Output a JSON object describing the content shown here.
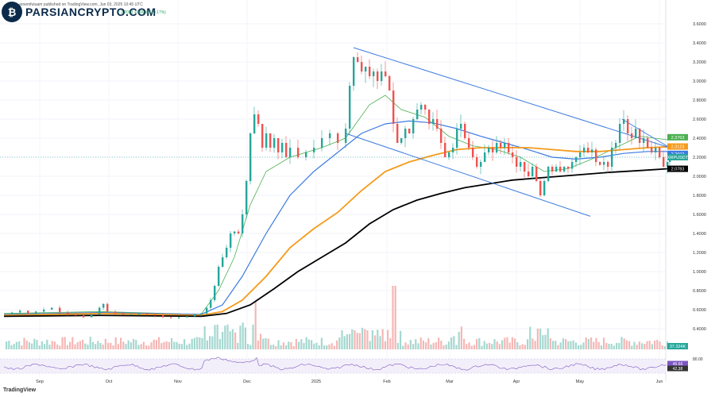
{
  "header": {
    "publisher": "arnemfutuam published on TradingView.com, Jun 03, 2025 10:45 UTC",
    "brand": "PARSIANCRYPTO.COM",
    "ohlc_text": "≈ 2.2003 +0.0038 (+0.17%)",
    "footer_logo": "TradingView"
  },
  "colors": {
    "up": "#26a69a",
    "down": "#ef5350",
    "ema_fast": "#4caf50",
    "ema_mid": "#3d7be0",
    "ema_slow": "#f59a1b",
    "ema_200": "#000000",
    "channel": "#3d7be0"
  },
  "chart_data": {
    "type": "line",
    "symbol_tag": "XRPUSDT",
    "y_ticks": [
      "3.6000",
      "3.4000",
      "3.2000",
      "3.0000",
      "2.8000",
      "2.6000",
      "2.4000",
      "2.2000",
      "2.0000",
      "1.8000",
      "1.6000",
      "1.4000",
      "1.2000",
      "1.0000",
      "0.8000",
      "0.6000",
      "0.4000"
    ],
    "x_ticks": [
      "Sep",
      "Oct",
      "Nov",
      "Dec",
      "2025",
      "Feb",
      "Mar",
      "Apr",
      "May",
      "Jun"
    ],
    "price_labels": [
      {
        "value": "2.3763",
        "color": "#4caf50",
        "price": 2.3763
      },
      {
        "value": "2.3123",
        "color": "#f59a1b",
        "price": 2.3123
      },
      {
        "value": "2.2602",
        "color": "#3d7be0",
        "price": 2.2602
      },
      {
        "value": "XRPUSDT",
        "color": "#26a69a",
        "price": 2.2003
      },
      {
        "value": "2.0783",
        "color": "#000000",
        "price": 2.0783
      }
    ],
    "volume_label": "37.324K",
    "rsi_ticks": [
      "80.00",
      "46.66",
      "42.38"
    ],
    "series": [
      {
        "name": "price",
        "values": [
          [
            0,
            0.55
          ],
          [
            10,
            0.57
          ],
          [
            20,
            0.59
          ],
          [
            30,
            0.56
          ],
          [
            40,
            0.58
          ],
          [
            50,
            0.6
          ],
          [
            60,
            0.62
          ],
          [
            70,
            0.57
          ],
          [
            80,
            0.55
          ],
          [
            90,
            0.54
          ],
          [
            100,
            0.52
          ],
          [
            110,
            0.55
          ],
          [
            120,
            0.62
          ],
          [
            125,
            0.66
          ],
          [
            130,
            0.58
          ],
          [
            140,
            0.56
          ],
          [
            150,
            0.55
          ],
          [
            160,
            0.55
          ],
          [
            170,
            0.56
          ],
          [
            180,
            0.55
          ],
          [
            190,
            0.54
          ],
          [
            200,
            0.52
          ],
          [
            210,
            0.51
          ],
          [
            220,
            0.52
          ],
          [
            230,
            0.53
          ],
          [
            240,
            0.55
          ],
          [
            248,
            0.56
          ],
          [
            255,
            0.62
          ],
          [
            260,
            0.7
          ],
          [
            265,
            0.85
          ],
          [
            270,
            1.05
          ],
          [
            275,
            1.15
          ],
          [
            280,
            1.25
          ],
          [
            285,
            1.4
          ],
          [
            290,
            1.42
          ],
          [
            295,
            1.4
          ],
          [
            300,
            1.6
          ],
          [
            305,
            1.95
          ],
          [
            310,
            2.45
          ],
          [
            315,
            2.65
          ],
          [
            320,
            2.55
          ],
          [
            325,
            2.3
          ],
          [
            330,
            2.45
          ],
          [
            335,
            2.3
          ],
          [
            340,
            2.4
          ],
          [
            345,
            2.25
          ],
          [
            350,
            2.35
          ],
          [
            355,
            2.2
          ],
          [
            360,
            2.3
          ],
          [
            370,
            2.2
          ],
          [
            380,
            2.25
          ],
          [
            390,
            2.3
          ],
          [
            400,
            2.4
          ],
          [
            410,
            2.45
          ],
          [
            420,
            2.35
          ],
          [
            430,
            2.5
          ],
          [
            435,
            2.95
          ],
          [
            440,
            3.25
          ],
          [
            445,
            3.2
          ],
          [
            450,
            3.1
          ],
          [
            455,
            3.15
          ],
          [
            460,
            3.05
          ],
          [
            465,
            3.1
          ],
          [
            470,
            3.0
          ],
          [
            475,
            3.1
          ],
          [
            480,
            3.05
          ],
          [
            485,
            2.9
          ],
          [
            490,
            2.55
          ],
          [
            495,
            2.35
          ],
          [
            500,
            2.4
          ],
          [
            505,
            2.5
          ],
          [
            510,
            2.45
          ],
          [
            515,
            2.6
          ],
          [
            520,
            2.7
          ],
          [
            525,
            2.75
          ],
          [
            530,
            2.7
          ],
          [
            535,
            2.55
          ],
          [
            540,
            2.6
          ],
          [
            545,
            2.5
          ],
          [
            550,
            2.35
          ],
          [
            555,
            2.2
          ],
          [
            560,
            2.25
          ],
          [
            565,
            2.3
          ],
          [
            570,
            2.5
          ],
          [
            575,
            2.55
          ],
          [
            580,
            2.4
          ],
          [
            585,
            2.3
          ],
          [
            590,
            2.2
          ],
          [
            595,
            2.1
          ],
          [
            600,
            2.15
          ],
          [
            605,
            2.25
          ],
          [
            610,
            2.3
          ],
          [
            615,
            2.25
          ],
          [
            620,
            2.35
          ],
          [
            625,
            2.3
          ],
          [
            630,
            2.35
          ],
          [
            635,
            2.25
          ],
          [
            640,
            2.2
          ],
          [
            645,
            2.1
          ],
          [
            650,
            2.15
          ],
          [
            655,
            2.05
          ],
          [
            660,
            2.0
          ],
          [
            665,
            2.1
          ],
          [
            670,
            1.95
          ],
          [
            675,
            1.8
          ],
          [
            680,
            1.95
          ],
          [
            685,
            2.1
          ],
          [
            690,
            2.05
          ],
          [
            695,
            2.1
          ],
          [
            700,
            2.05
          ],
          [
            705,
            2.1
          ],
          [
            710,
            2.08
          ],
          [
            715,
            2.15
          ],
          [
            720,
            2.2
          ],
          [
            725,
            2.25
          ],
          [
            730,
            2.3
          ],
          [
            735,
            2.25
          ],
          [
            740,
            2.28
          ],
          [
            745,
            2.15
          ],
          [
            750,
            2.12
          ],
          [
            755,
            2.15
          ],
          [
            760,
            2.1
          ],
          [
            765,
            2.3
          ],
          [
            770,
            2.35
          ],
          [
            775,
            2.55
          ],
          [
            780,
            2.6
          ],
          [
            785,
            2.45
          ],
          [
            790,
            2.4
          ],
          [
            795,
            2.5
          ],
          [
            800,
            2.35
          ],
          [
            805,
            2.4
          ],
          [
            810,
            2.3
          ],
          [
            815,
            2.25
          ],
          [
            820,
            2.3
          ],
          [
            825,
            2.2
          ],
          [
            830,
            2.1
          ],
          [
            835,
            2.15
          ],
          [
            838,
            2.2
          ]
        ]
      },
      {
        "name": "ema_fast",
        "values": [
          [
            0,
            0.56
          ],
          [
            120,
            0.58
          ],
          [
            248,
            0.55
          ],
          [
            270,
            0.8
          ],
          [
            290,
            1.15
          ],
          [
            310,
            1.7
          ],
          [
            330,
            2.05
          ],
          [
            360,
            2.2
          ],
          [
            400,
            2.3
          ],
          [
            430,
            2.4
          ],
          [
            460,
            2.75
          ],
          [
            480,
            2.85
          ],
          [
            500,
            2.7
          ],
          [
            530,
            2.62
          ],
          [
            560,
            2.42
          ],
          [
            590,
            2.32
          ],
          [
            620,
            2.28
          ],
          [
            650,
            2.2
          ],
          [
            680,
            2.05
          ],
          [
            710,
            2.08
          ],
          [
            740,
            2.18
          ],
          [
            770,
            2.3
          ],
          [
            800,
            2.42
          ],
          [
            838,
            2.38
          ]
        ]
      },
      {
        "name": "ema_mid",
        "values": [
          [
            0,
            0.55
          ],
          [
            120,
            0.57
          ],
          [
            248,
            0.55
          ],
          [
            275,
            0.65
          ],
          [
            300,
            0.95
          ],
          [
            330,
            1.4
          ],
          [
            360,
            1.8
          ],
          [
            390,
            2.05
          ],
          [
            420,
            2.25
          ],
          [
            450,
            2.45
          ],
          [
            480,
            2.55
          ],
          [
            510,
            2.58
          ],
          [
            540,
            2.56
          ],
          [
            570,
            2.5
          ],
          [
            600,
            2.42
          ],
          [
            630,
            2.35
          ],
          [
            660,
            2.28
          ],
          [
            690,
            2.2
          ],
          [
            720,
            2.18
          ],
          [
            750,
            2.2
          ],
          [
            780,
            2.24
          ],
          [
            810,
            2.26
          ],
          [
            838,
            2.26
          ]
        ]
      },
      {
        "name": "ema_slow",
        "values": [
          [
            0,
            0.54
          ],
          [
            120,
            0.56
          ],
          [
            248,
            0.54
          ],
          [
            275,
            0.58
          ],
          [
            300,
            0.7
          ],
          [
            330,
            0.95
          ],
          [
            360,
            1.25
          ],
          [
            390,
            1.45
          ],
          [
            420,
            1.62
          ],
          [
            450,
            1.85
          ],
          [
            480,
            2.05
          ],
          [
            510,
            2.15
          ],
          [
            540,
            2.22
          ],
          [
            570,
            2.28
          ],
          [
            600,
            2.3
          ],
          [
            630,
            2.3
          ],
          [
            660,
            2.3
          ],
          [
            690,
            2.28
          ],
          [
            720,
            2.26
          ],
          [
            750,
            2.26
          ],
          [
            780,
            2.28
          ],
          [
            810,
            2.3
          ],
          [
            838,
            2.31
          ]
        ]
      },
      {
        "name": "ema_200",
        "values": [
          [
            0,
            0.53
          ],
          [
            120,
            0.54
          ],
          [
            248,
            0.53
          ],
          [
            280,
            0.56
          ],
          [
            310,
            0.65
          ],
          [
            340,
            0.82
          ],
          [
            370,
            1.0
          ],
          [
            400,
            1.15
          ],
          [
            430,
            1.3
          ],
          [
            460,
            1.5
          ],
          [
            490,
            1.65
          ],
          [
            520,
            1.75
          ],
          [
            550,
            1.82
          ],
          [
            580,
            1.88
          ],
          [
            610,
            1.92
          ],
          [
            640,
            1.96
          ],
          [
            670,
            1.98
          ],
          [
            700,
            2.0
          ],
          [
            730,
            2.02
          ],
          [
            760,
            2.04
          ],
          [
            800,
            2.06
          ],
          [
            838,
            2.08
          ]
        ]
      }
    ],
    "channel": {
      "upper": [
        [
          440,
          3.35
        ],
        [
          838,
          2.3
        ]
      ],
      "lower": [
        [
          430,
          2.45
        ],
        [
          738,
          1.58
        ]
      ],
      "wedge": [
        [
          778,
          2.6
        ],
        [
          838,
          2.3
        ]
      ]
    }
  }
}
